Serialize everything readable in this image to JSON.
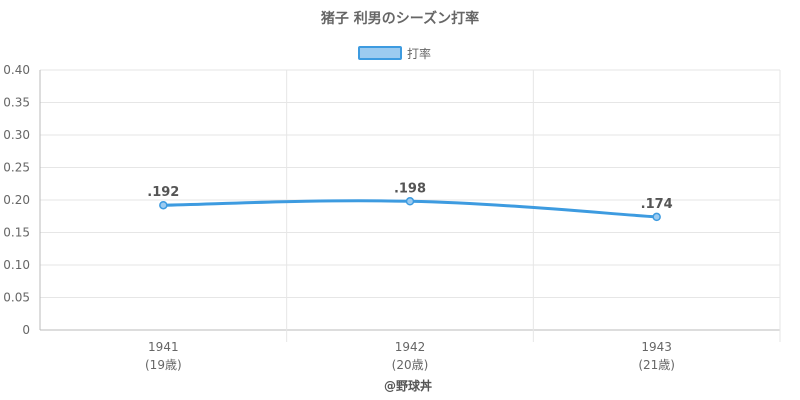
{
  "chart_data": {
    "type": "line",
    "title": "猪子 利男のシーズン打率",
    "categories": [
      "1941",
      "1942",
      "1943"
    ],
    "category_sublabels": [
      "(19歳)",
      "(20歳)",
      "(21歳)"
    ],
    "series": [
      {
        "name": "打率",
        "values": [
          0.192,
          0.198,
          0.174
        ],
        "data_labels": [
          ".192",
          ".198",
          ".174"
        ]
      }
    ],
    "ylim": [
      0,
      0.4
    ],
    "yticks": [
      "0",
      "0.05",
      "0.10",
      "0.15",
      "0.20",
      "0.25",
      "0.30",
      "0.35",
      "0.40"
    ],
    "xlabel": "",
    "ylabel": "",
    "grid": true,
    "legend_position": "top",
    "colors": {
      "line": "#3d9be0",
      "fill": "#9ccbf0",
      "grid": "#e6e6e6",
      "axis": "#bbbbbb"
    }
  },
  "credit": "@野球丼"
}
